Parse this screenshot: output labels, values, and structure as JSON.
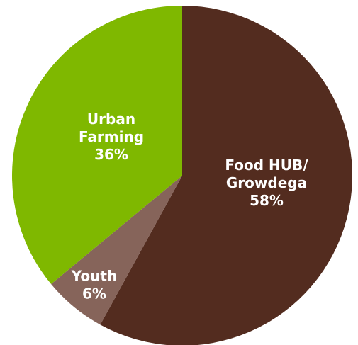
{
  "chart_data": {
    "type": "pie",
    "slices": [
      {
        "label": [
          "Food HUB/",
          "Growdega"
        ],
        "percent_text": "58%",
        "value": 58,
        "color": "#532c1f"
      },
      {
        "label": [
          "Youth"
        ],
        "percent_text": "6%",
        "value": 6,
        "color": "#86645a"
      },
      {
        "label": [
          "Urban",
          "Farming"
        ],
        "percent_text": "36%",
        "value": 36,
        "color": "#7fb800"
      }
    ],
    "start_angle_deg": 0,
    "direction": "clockwise"
  }
}
